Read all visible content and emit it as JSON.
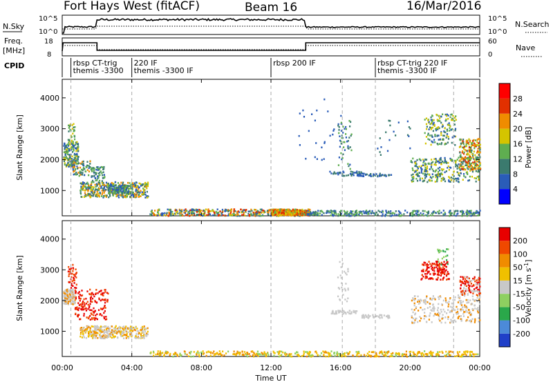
{
  "header": {
    "station": "Fort Hays West (fitACF)",
    "beam": "Beam 16",
    "date": "16/Mar/2016"
  },
  "top_panels": {
    "nsky_label": "N.Sky",
    "nsearch_label": "N.Search",
    "nsky_ticks": [
      "10^5",
      "10^0"
    ],
    "nsearch_ticks": [
      "10^5",
      "10^0"
    ],
    "freq_label_1": "Freq.",
    "freq_label_2": "[MHz]",
    "freq_ticks": [
      "18",
      "8"
    ],
    "nave_label": "Nave",
    "nave_ticks": [
      "60",
      "0"
    ],
    "cpid_label": "CPID",
    "cpid_segments": [
      {
        "line1": "rbsp  CT-trig",
        "line2": "themis -3300",
        "start_h": 0.5
      },
      {
        "line1": "220  IF",
        "line2": "themis -3300  IF",
        "start_h": 4.0
      },
      {
        "line1": "rbsp  200  IF",
        "line2": "",
        "start_h": 12.0
      },
      {
        "line1": "rbsp  CT-trig  220  IF",
        "line2": "themis -3300  IF",
        "start_h": 18.0
      }
    ]
  },
  "chart_data": [
    {
      "type": "heatmap",
      "title": "Power",
      "ylabel": "Slant Range [km]",
      "xlabel": "Time UT",
      "x_ticks": [
        "00:00",
        "04:00",
        "08:00",
        "12:00",
        "16:00",
        "20:00",
        "00:00"
      ],
      "y_ticks": [
        1000,
        2000,
        3000,
        4000
      ],
      "xlim_hours": [
        0,
        24
      ],
      "ylim": [
        180,
        4600
      ],
      "colorbar_label": "Power [dB]",
      "colorbar_ticks": [
        4,
        8,
        12,
        16,
        20,
        24,
        28
      ],
      "colorbar_colors": [
        "#0000ff",
        "#2a5cb8",
        "#3b7a6e",
        "#5fae50",
        "#d4c400",
        "#f08c00",
        "#e23000",
        "#ff0000"
      ]
    },
    {
      "type": "heatmap",
      "title": "Velocity",
      "ylabel": "Slant Range [km]",
      "xlabel": "Time UT",
      "x_ticks": [
        "00:00",
        "04:00",
        "08:00",
        "12:00",
        "16:00",
        "20:00",
        "00:00"
      ],
      "y_ticks": [
        1000,
        2000,
        3000,
        4000
      ],
      "xlim_hours": [
        0,
        24
      ],
      "ylim": [
        180,
        4600
      ],
      "colorbar_label": "Velocity [m s^-1]",
      "colorbar_ticks": [
        200,
        100,
        50,
        15,
        -15,
        -50,
        -100,
        -200
      ],
      "colorbar_colors": [
        "#2040c8",
        "#4c8ad8",
        "#2aa84a",
        "#8ed060",
        "#c8c8c8",
        "#f0c000",
        "#f08c00",
        "#f04800",
        "#e80000"
      ]
    }
  ],
  "x_axis_label": "Time UT"
}
